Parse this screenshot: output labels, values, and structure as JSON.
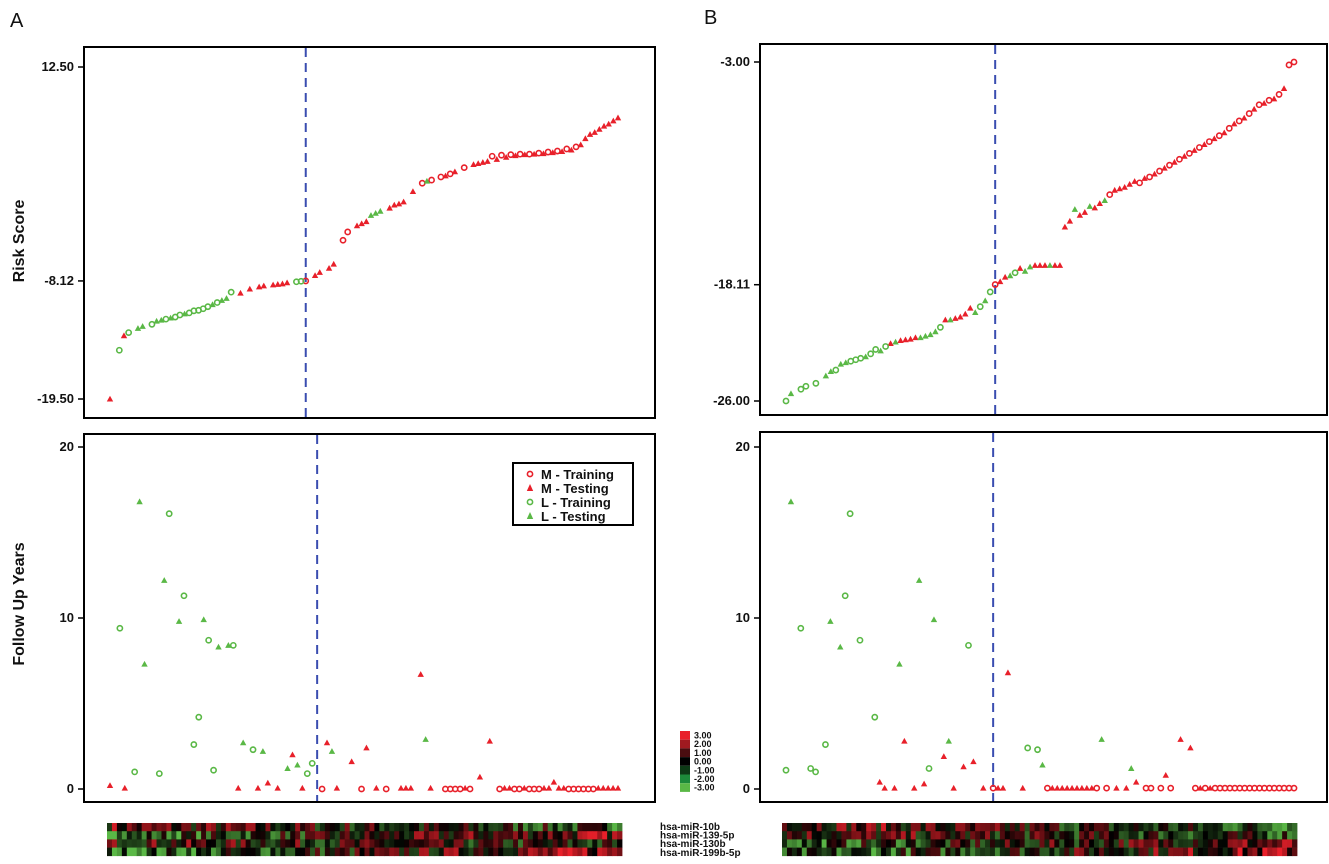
{
  "colors": {
    "M": "#e8202a",
    "L": "#5ab846",
    "cutoff": "#3a4db0",
    "heat_high": "#e8202a",
    "heat_mid": "#000000",
    "heat_low": "#5ab846"
  },
  "legend": [
    "M - Training",
    "M - Testing",
    "L - Training",
    "L - Testing"
  ],
  "genes": [
    "hsa-miR-10b",
    "hsa-miR-139-5p",
    "hsa-miR-130b",
    "hsa-miR-199b-5p"
  ],
  "colorbar_labels": [
    "3.00",
    "2.00",
    "1.00",
    "0.00",
    "-1.00",
    "-2.00",
    "-3.00"
  ],
  "chart_data": [
    {
      "type": "scatter",
      "panel": "A",
      "title": "",
      "ylabel": "Risk Score",
      "yticks": [
        "12.50",
        "-8.12",
        "-19.50"
      ],
      "ylim": [
        -19.5,
        12.5
      ],
      "cutoff_rank": 43,
      "series": [
        {
          "name": "M - Training",
          "group": "M",
          "marker": "circle",
          "x": [
            43,
            51,
            52,
            68,
            70,
            72,
            74,
            77,
            83,
            85,
            87,
            89,
            91,
            93,
            95,
            97,
            99,
            101
          ],
          "y": [
            -8.12,
            -4.2,
            -3.4,
            1.3,
            1.6,
            1.9,
            2.2,
            2.8,
            3.9,
            4.0,
            4.05,
            4.1,
            4.1,
            4.2,
            4.3,
            4.4,
            4.6,
            4.8
          ]
        },
        {
          "name": "M - Testing",
          "group": "M",
          "marker": "triangle",
          "x": [
            1,
            4,
            29,
            31,
            33,
            34,
            36,
            37,
            38,
            39,
            45,
            46,
            48,
            49,
            54,
            55,
            56,
            61,
            62,
            63,
            64,
            66,
            73,
            75,
            79,
            80,
            81,
            82,
            84,
            86,
            88,
            90,
            92,
            94,
            96,
            98,
            100,
            102,
            103,
            104,
            105,
            106,
            107,
            108,
            109,
            110
          ],
          "y": [
            -19.5,
            -13.4,
            -9.3,
            -8.9,
            -8.7,
            -8.6,
            -8.5,
            -8.45,
            -8.4,
            -8.3,
            -7.6,
            -7.3,
            -6.9,
            -6.5,
            -2.8,
            -2.6,
            -2.4,
            -1.1,
            -0.8,
            -0.7,
            -0.5,
            0.5,
            2.0,
            2.4,
            3.1,
            3.2,
            3.3,
            3.4,
            3.6,
            3.8,
            3.95,
            4.05,
            4.1,
            4.15,
            4.25,
            4.35,
            4.5,
            5.0,
            5.6,
            6.0,
            6.2,
            6.5,
            6.8,
            7.0,
            7.3,
            7.6
          ]
        },
        {
          "name": "L - Training",
          "group": "L",
          "marker": "circle",
          "x": [
            3,
            5,
            10,
            13,
            15,
            16,
            18,
            19,
            20,
            21,
            22,
            24,
            27,
            41,
            42
          ],
          "y": [
            -14.8,
            -13.1,
            -12.3,
            -11.8,
            -11.6,
            -11.4,
            -11.2,
            -11.0,
            -10.95,
            -10.8,
            -10.6,
            -10.2,
            -9.2,
            -8.2,
            -8.15
          ]
        },
        {
          "name": "L - Testing",
          "group": "L",
          "marker": "triangle",
          "x": [
            7,
            8,
            11,
            12,
            14,
            17,
            23,
            25,
            26,
            57,
            58,
            59,
            69
          ],
          "y": [
            -12.7,
            -12.5,
            -12.0,
            -11.9,
            -11.7,
            -11.3,
            -10.4,
            -10.0,
            -9.8,
            -1.8,
            -1.6,
            -1.4,
            1.5
          ]
        }
      ]
    },
    {
      "type": "scatter",
      "panel": "A",
      "ylabel": "Follow Up Years",
      "yticks": [
        "20",
        "10",
        "0"
      ],
      "ylim": [
        0,
        20
      ],
      "cutoff_rank": 43,
      "series": [
        {
          "name": "M - Training",
          "group": "M",
          "marker": "circle",
          "x": [
            44,
            52,
            57,
            69,
            70,
            71,
            72,
            74,
            80,
            83,
            84,
            86,
            87,
            88,
            94,
            95,
            96,
            97,
            98,
            99
          ],
          "y": [
            0,
            0,
            0,
            0,
            0,
            0,
            0,
            0,
            0,
            0,
            0,
            0,
            0,
            0,
            0,
            0,
            0,
            0,
            0,
            0
          ]
        },
        {
          "name": "M - Testing",
          "group": "M",
          "marker": "triangle",
          "x": [
            1,
            4,
            27,
            31,
            33,
            35,
            38,
            40,
            45,
            47,
            50,
            53,
            55,
            60,
            61,
            62,
            64,
            66,
            73,
            76,
            78,
            81,
            82,
            85,
            89,
            90,
            91,
            92,
            93,
            100,
            101,
            102,
            103,
            104
          ],
          "y": [
            0.2,
            0.05,
            0.05,
            0.05,
            0.35,
            0.05,
            2.0,
            0.05,
            2.7,
            0.05,
            1.6,
            2.4,
            0.05,
            0.05,
            0.05,
            0.05,
            6.7,
            0.05,
            0.05,
            0.7,
            2.8,
            0.05,
            0.05,
            0.05,
            0.05,
            0.05,
            0.4,
            0.05,
            0.05,
            0.05,
            0.05,
            0.05,
            0.05,
            0.05
          ]
        },
        {
          "name": "L - Training",
          "group": "L",
          "marker": "circle",
          "x": [
            3,
            6,
            11,
            13,
            16,
            18,
            19,
            21,
            22,
            26,
            30,
            41,
            42
          ],
          "y": [
            9.4,
            1.0,
            0.9,
            16.1,
            11.3,
            2.6,
            4.2,
            8.7,
            1.1,
            8.4,
            2.3,
            0.9,
            1.5
          ]
        },
        {
          "name": "L - Testing",
          "group": "L",
          "marker": "triangle",
          "x": [
            7,
            8,
            12,
            15,
            20,
            23,
            25,
            28,
            32,
            37,
            39,
            46,
            65
          ],
          "y": [
            16.8,
            7.3,
            12.2,
            9.8,
            9.9,
            8.3,
            8.4,
            2.7,
            2.2,
            1.2,
            1.4,
            2.2,
            2.9
          ]
        }
      ]
    },
    {
      "type": "scatter",
      "panel": "B",
      "ylabel": "",
      "yticks": [
        "-3.00",
        "-18.11",
        "-26.00"
      ],
      "ylim": [
        -26.0,
        -3.0
      ],
      "cutoff_rank": 43,
      "series": [
        {
          "name": "M - Training",
          "group": "M",
          "marker": "circle",
          "x": [
            43,
            66,
            72,
            74,
            76,
            78,
            80,
            82,
            84,
            86,
            88,
            90,
            92,
            94,
            96,
            98,
            100,
            102,
            103
          ],
          "y": [
            -18.1,
            -12.0,
            -11.2,
            -10.8,
            -10.4,
            -10.0,
            -9.6,
            -9.2,
            -8.8,
            -8.4,
            -8.0,
            -7.5,
            -7.0,
            -6.5,
            -5.9,
            -5.6,
            -5.2,
            -3.2,
            -3.0
          ]
        },
        {
          "name": "M - Testing",
          "group": "M",
          "marker": "triangle",
          "x": [
            22,
            24,
            25,
            26,
            27,
            33,
            35,
            36,
            37,
            38,
            44,
            45,
            48,
            51,
            52,
            53,
            55,
            56,
            57,
            58,
            60,
            61,
            63,
            64,
            67,
            68,
            69,
            70,
            71,
            73,
            75,
            77,
            79,
            81,
            83,
            85,
            87,
            89,
            91,
            93,
            95,
            97,
            99,
            101
          ],
          "y": [
            -22.1,
            -21.9,
            -21.85,
            -21.8,
            -21.7,
            -20.5,
            -20.4,
            -20.3,
            -20.1,
            -19.7,
            -17.9,
            -17.6,
            -17.0,
            -16.8,
            -16.8,
            -16.8,
            -16.8,
            -16.8,
            -14.2,
            -13.8,
            -13.4,
            -13.2,
            -12.9,
            -12.6,
            -11.7,
            -11.6,
            -11.5,
            -11.3,
            -11.1,
            -10.9,
            -10.6,
            -10.2,
            -9.8,
            -9.4,
            -9.0,
            -8.6,
            -8.2,
            -7.8,
            -7.2,
            -6.8,
            -6.2,
            -5.8,
            -5.5,
            -4.8
          ]
        },
        {
          "name": "L - Training",
          "group": "L",
          "marker": "circle",
          "x": [
            1,
            4,
            5,
            7,
            11,
            14,
            15,
            16,
            18,
            19,
            21,
            32,
            40,
            42,
            47
          ],
          "y": [
            -26.0,
            -25.2,
            -25.0,
            -24.8,
            -23.9,
            -23.3,
            -23.2,
            -23.1,
            -22.8,
            -22.5,
            -22.3,
            -21.0,
            -19.6,
            -18.6,
            -17.3
          ]
        },
        {
          "name": "L - Testing",
          "group": "L",
          "marker": "triangle",
          "x": [
            2,
            9,
            10,
            12,
            13,
            17,
            20,
            23,
            28,
            29,
            30,
            31,
            34,
            39,
            41,
            46,
            49,
            50,
            54,
            59,
            62,
            65
          ],
          "y": [
            -25.5,
            -24.3,
            -24.0,
            -23.5,
            -23.4,
            -23.0,
            -22.6,
            -22.0,
            -21.7,
            -21.6,
            -21.5,
            -21.3,
            -20.5,
            -20.0,
            -19.2,
            -17.5,
            -17.2,
            -16.9,
            -16.8,
            -13.0,
            -12.8,
            -12.4
          ]
        }
      ]
    },
    {
      "type": "scatter",
      "panel": "B",
      "ylabel": "",
      "yticks": [
        "20",
        "10",
        "0"
      ],
      "ylim": [
        0,
        20
      ],
      "cutoff_rank": 43,
      "series": [
        {
          "name": "M - Training",
          "group": "M",
          "marker": "circle",
          "x": [
            43,
            54,
            64,
            66,
            74,
            75,
            77,
            79,
            84,
            86,
            88,
            89,
            90,
            91,
            92,
            93,
            94,
            95,
            96,
            97,
            98,
            99,
            100,
            101,
            102,
            103,
            104
          ],
          "y": [
            0.05,
            0.05,
            0.05,
            0.05,
            0.05,
            0.05,
            0.05,
            0.05,
            0.05,
            0.05,
            0.05,
            0.05,
            0.05,
            0.05,
            0.05,
            0.05,
            0.05,
            0.05,
            0.05,
            0.05,
            0.05,
            0.05,
            0.05,
            0.05,
            0.05,
            0.05,
            0.05
          ]
        },
        {
          "name": "M - Testing",
          "group": "M",
          "marker": "triangle",
          "x": [
            20,
            21,
            23,
            25,
            27,
            29,
            33,
            35,
            37,
            39,
            41,
            44,
            45,
            46,
            49,
            55,
            56,
            57,
            58,
            59,
            60,
            61,
            62,
            63,
            68,
            70,
            72,
            78,
            81,
            83,
            85,
            87
          ],
          "y": [
            0.4,
            0.05,
            0.05,
            2.8,
            0.05,
            0.3,
            1.9,
            0.05,
            1.3,
            1.6,
            0.05,
            0.05,
            0.05,
            6.8,
            0.05,
            0.05,
            0.05,
            0.05,
            0.05,
            0.05,
            0.05,
            0.05,
            0.05,
            0.05,
            0.05,
            0.05,
            0.4,
            0.8,
            2.9,
            2.4,
            0.05,
            0.05
          ]
        },
        {
          "name": "L - Training",
          "group": "L",
          "marker": "circle",
          "x": [
            1,
            4,
            6,
            7,
            9,
            13,
            14,
            16,
            19,
            30,
            38,
            50,
            52
          ],
          "y": [
            1.1,
            9.4,
            1.2,
            1.0,
            2.6,
            11.3,
            16.1,
            8.7,
            4.2,
            1.2,
            8.4,
            2.4,
            2.3
          ]
        },
        {
          "name": "L - Testing",
          "group": "L",
          "marker": "triangle",
          "x": [
            2,
            10,
            12,
            24,
            28,
            31,
            34,
            53,
            65,
            71
          ],
          "y": [
            16.8,
            9.8,
            8.3,
            7.3,
            12.2,
            9.9,
            2.8,
            1.4,
            2.9,
            1.2
          ]
        }
      ]
    }
  ]
}
